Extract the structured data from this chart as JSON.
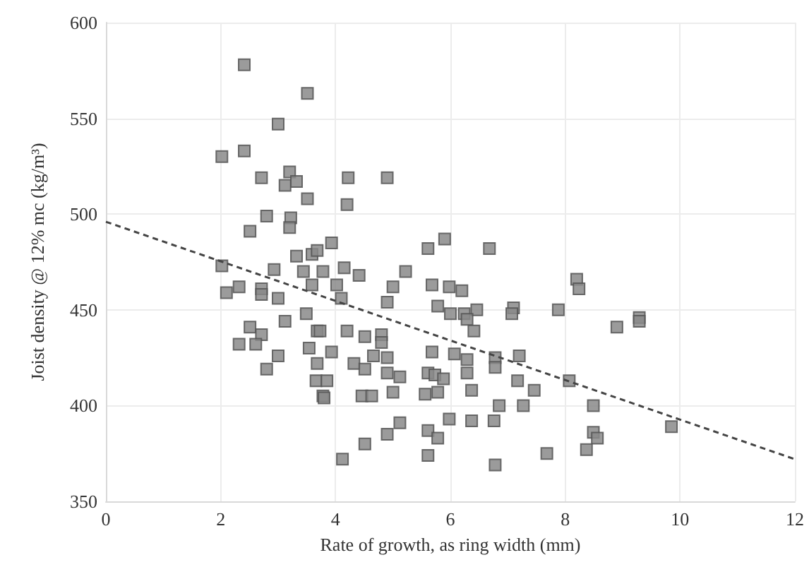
{
  "chart_data": {
    "type": "scatter",
    "xlabel": "Rate of growth, as ring width (mm)",
    "ylabel": "Joist density @ 12% mc (kg/m³)",
    "xlim": [
      0,
      12
    ],
    "xticks": [
      0,
      2,
      4,
      6,
      8,
      10,
      12
    ],
    "ylim": [
      350,
      600
    ],
    "yticks": [
      350,
      400,
      450,
      500,
      550,
      600
    ],
    "grid": true,
    "marker": "square",
    "series": [
      {
        "color": "#8a8a8a",
        "x": [
          2.41,
          3.51,
          3.0,
          2.02,
          2.41,
          3.2,
          2.71,
          3.12,
          3.32,
          3.51,
          2.8,
          3.22,
          3.2,
          2.51,
          2.02,
          2.93,
          3.32,
          3.59,
          2.32,
          2.1,
          2.71,
          3.44,
          3.59,
          2.71,
          3.0,
          3.49,
          3.12,
          2.51,
          2.71,
          2.32,
          2.61,
          3.0,
          2.8,
          3.68,
          3.54,
          3.68,
          3.66,
          3.78,
          4.22,
          4.9,
          4.2,
          3.93,
          5.61,
          5.9,
          6.68,
          3.68,
          4.15,
          4.41,
          5.22,
          3.78,
          4.02,
          5.0,
          5.68,
          5.98,
          6.2,
          4.9,
          5.78,
          6.0,
          6.24,
          6.46,
          6.29,
          7.1,
          7.07,
          6.41,
          4.2,
          4.51,
          4.8,
          4.8,
          4.66,
          4.9,
          4.32,
          4.51,
          4.9,
          5.12,
          5.68,
          6.07,
          6.29,
          6.29,
          5.61,
          5.73,
          5.88,
          6.78,
          6.78,
          7.2,
          7.17,
          7.46,
          6.85,
          7.27,
          4.46,
          4.63,
          5.0,
          5.56,
          5.78,
          6.37,
          5.98,
          6.37,
          6.76,
          5.12,
          4.9,
          5.61,
          5.78,
          4.51,
          4.12,
          5.61,
          6.78,
          7.68,
          3.73,
          3.93,
          3.85,
          3.8,
          4.1,
          8.2,
          8.24,
          7.88,
          8.9,
          9.29,
          9.29,
          8.07,
          8.49,
          8.49,
          8.56,
          9.85,
          8.37
        ],
        "values": [
          578,
          563,
          547,
          530,
          533,
          522,
          519,
          515,
          517,
          508,
          499,
          498,
          493,
          491,
          473,
          471,
          478,
          479,
          462,
          459,
          461,
          470,
          463,
          458,
          456,
          448,
          444,
          441,
          437,
          432,
          432,
          426,
          419,
          439,
          430,
          422,
          413,
          405,
          519,
          519,
          505,
          485,
          482,
          487,
          482,
          481,
          472,
          468,
          470,
          470,
          463,
          462,
          463,
          462,
          460,
          454,
          452,
          448,
          448,
          450,
          445,
          451,
          448,
          439,
          439,
          436,
          437,
          433,
          426,
          425,
          422,
          419,
          417,
          415,
          428,
          427,
          424,
          417,
          417,
          416,
          414,
          425,
          420,
          426,
          413,
          408,
          400,
          400,
          405,
          405,
          407,
          406,
          407,
          408,
          393,
          392,
          392,
          391,
          385,
          387,
          383,
          380,
          372,
          374,
          369,
          375,
          439,
          428,
          413,
          404,
          456,
          466,
          461,
          450,
          441,
          446,
          444,
          413,
          400,
          386,
          383,
          389,
          377
        ]
      },
      {
        "type": "line",
        "color": "#444444",
        "marker": "none",
        "line_style": "dashed",
        "x": [
          0,
          12
        ],
        "values": [
          496,
          372
        ]
      }
    ]
  }
}
